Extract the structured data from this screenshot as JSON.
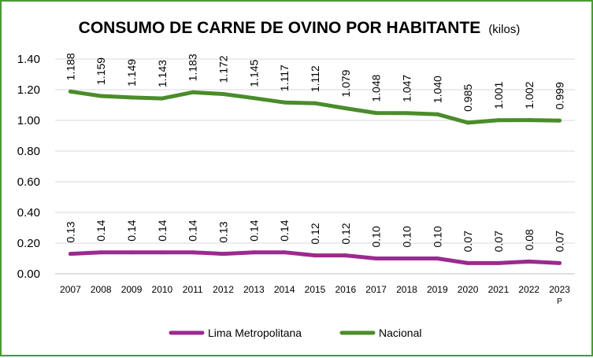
{
  "chart_data": {
    "type": "line",
    "title": "CONSUMO  DE CARNE DE OVINO POR HABITANTE",
    "title_unit": "(kilos)",
    "categories": [
      "2007",
      "2008",
      "2009",
      "2010",
      "2011",
      "2012",
      "2013",
      "2014",
      "2015",
      "2016",
      "2017",
      "2018",
      "2019",
      "2020",
      "2021",
      "2022",
      "2023"
    ],
    "category_notes": {
      "2023": "P"
    },
    "ylim": [
      0,
      1.4
    ],
    "yticks": [
      "0.00",
      "0.20",
      "0.40",
      "0.60",
      "0.80",
      "1.00",
      "1.20",
      "1.40"
    ],
    "grid": true,
    "legend_position": "bottom",
    "series": [
      {
        "name": "Lima Metropolitana",
        "color": "#9b2a8f",
        "values": [
          0.13,
          0.14,
          0.14,
          0.14,
          0.14,
          0.13,
          0.14,
          0.14,
          0.12,
          0.12,
          0.1,
          0.1,
          0.1,
          0.07,
          0.07,
          0.08,
          0.07
        ],
        "labels": [
          "0.13",
          "0.14",
          "0.14",
          "0.14",
          "0.14",
          "0.13",
          "0.14",
          "0.14",
          "0.12",
          "0.12",
          "0.10",
          "0.10",
          "0.10",
          "0.07",
          "0.07",
          "0.08",
          "0.07"
        ]
      },
      {
        "name": "Nacional",
        "color": "#4a8c2a",
        "values": [
          1.188,
          1.159,
          1.149,
          1.143,
          1.183,
          1.172,
          1.145,
          1.117,
          1.112,
          1.079,
          1.048,
          1.047,
          1.04,
          0.985,
          1.001,
          1.002,
          0.999
        ],
        "labels": [
          "1.188",
          "1.159",
          "1.149",
          "1.143",
          "1.183",
          "1.172",
          "1.145",
          "1.117",
          "1.112",
          "1.079",
          "1.048",
          "1.047",
          "1.040",
          "0.985",
          "1.001",
          "1.002",
          "0.999"
        ]
      }
    ]
  }
}
